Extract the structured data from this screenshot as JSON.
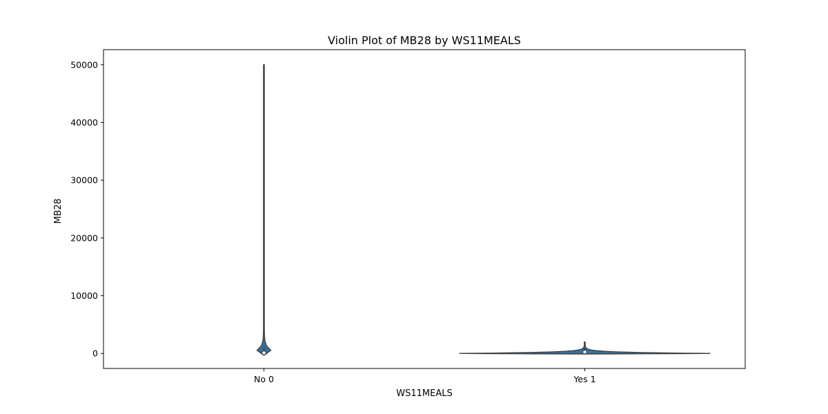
{
  "chart_data": {
    "type": "violin",
    "title": "Violin Plot of MB28 by WS11MEALS",
    "xlabel": "WS11MEALS",
    "ylabel": "MB28",
    "categories": [
      "No 0",
      "Yes 1"
    ],
    "ylim": [
      -2600,
      52600
    ],
    "yticks": [
      0,
      10000,
      20000,
      30000,
      40000,
      50000
    ],
    "grid": false,
    "legend": "none",
    "series": [
      {
        "category": "No 0",
        "min": 0,
        "max": 50000,
        "q1": 0,
        "median": 100,
        "q3": 400,
        "whisker_high": 1000,
        "violin_low": -300,
        "body_top": 700
      },
      {
        "category": "Yes 1",
        "min": 0,
        "max": 2000,
        "q1": 50,
        "median": 250,
        "q3": 600,
        "whisker_high": 1000,
        "violin_low": -100,
        "body_top": 200
      }
    ],
    "colors": {
      "violin_fill": "#3a6f99",
      "violin_edge": "#3d3d3d",
      "box": "#3d3d3d",
      "median": "#ffffff"
    }
  }
}
